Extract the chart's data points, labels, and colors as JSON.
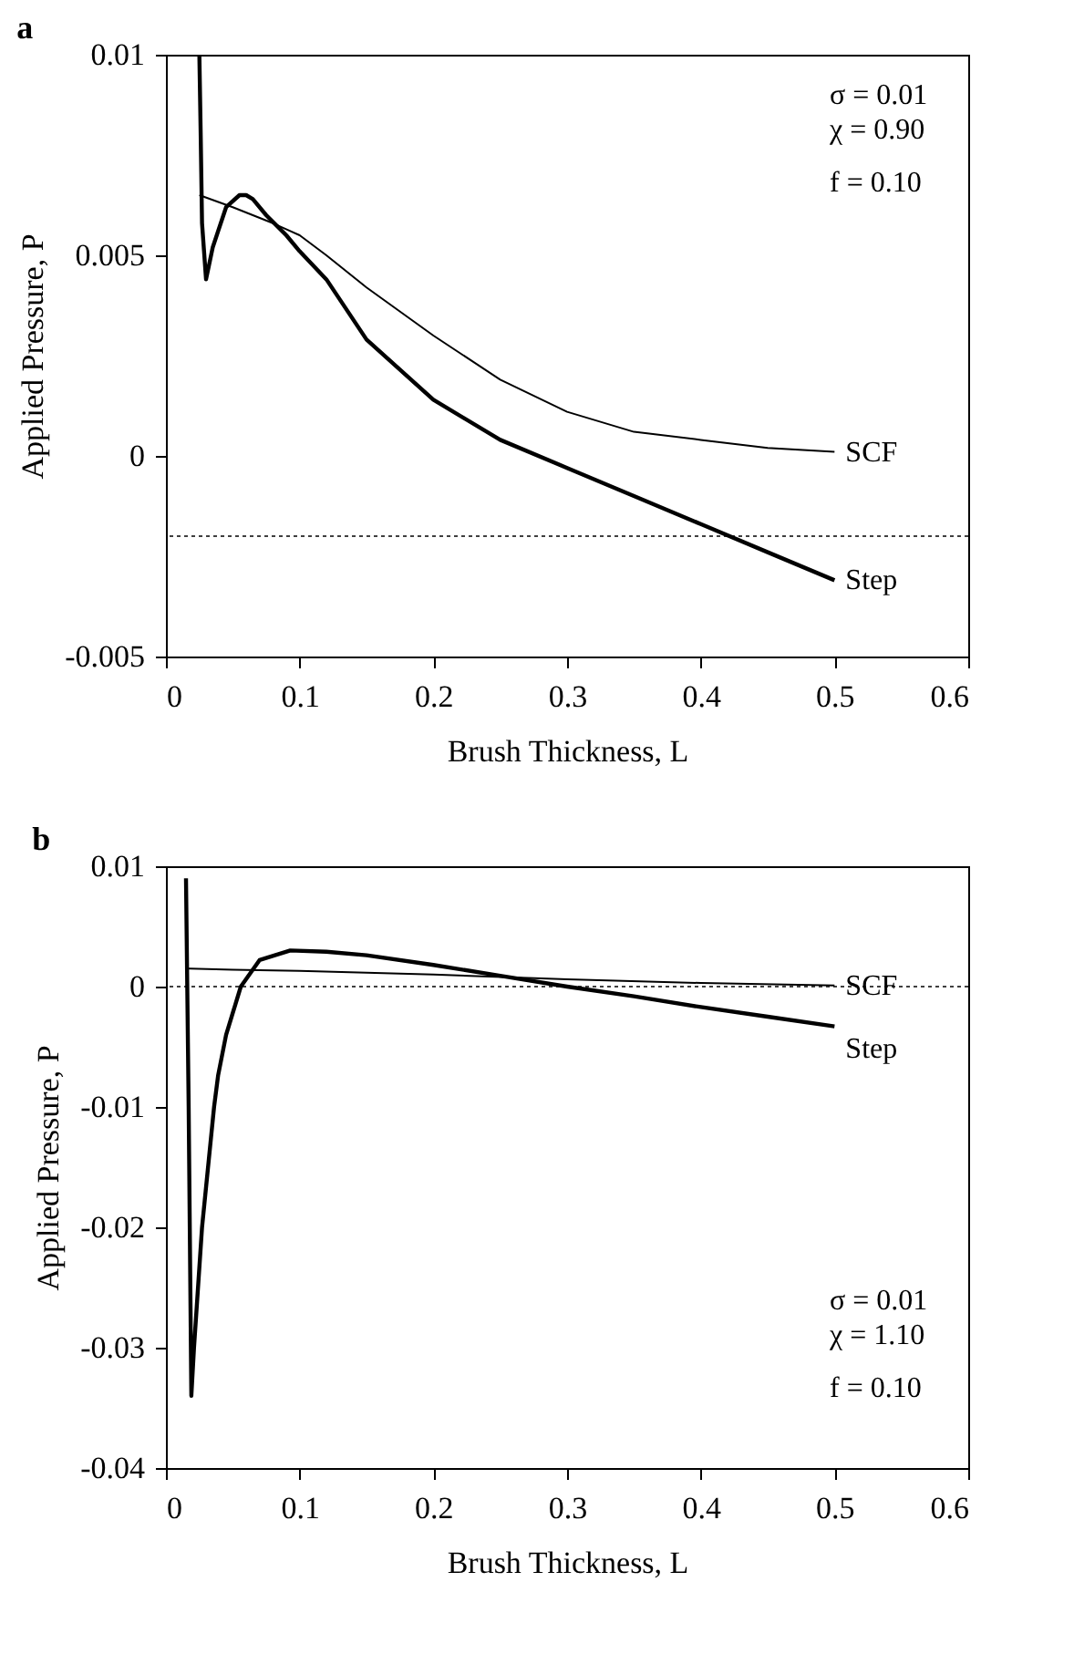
{
  "chart_data": [
    {
      "type": "line",
      "title": "a",
      "xlabel": "Brush Thickness, L",
      "ylabel": "Applied Pressure, P",
      "xlim": [
        0,
        0.6
      ],
      "xticks": [
        0,
        0.1,
        0.2,
        0.3,
        0.4,
        0.5,
        0.6
      ],
      "ylim": [
        -0.005,
        0.01
      ],
      "yticks": [
        -0.005,
        0,
        0.005,
        0.01
      ],
      "grid": false,
      "legend": false,
      "annotations": [
        "σ = 0.01",
        "χ = 0.90",
        "f = 0.10"
      ],
      "ref_lines": [
        {
          "axis": "y",
          "value": -0.002,
          "label": null,
          "color": "#000000",
          "line_style": "dotted"
        }
      ],
      "series": [
        {
          "name": "SCF",
          "color": "#000000",
          "x": [
            0.025,
            0.05,
            0.08,
            0.1,
            0.12,
            0.15,
            0.2,
            0.25,
            0.3,
            0.35,
            0.4,
            0.45,
            0.5
          ],
          "values": [
            0.0065,
            0.0062,
            0.0058,
            0.0055,
            0.005,
            0.0042,
            0.003,
            0.0019,
            0.0011,
            0.0006,
            0.0004,
            0.0002,
            0.0001
          ]
        },
        {
          "name": "Step",
          "color": "#000000",
          "x": [
            0.025,
            0.026,
            0.027,
            0.03,
            0.035,
            0.045,
            0.055,
            0.06,
            0.065,
            0.075,
            0.09,
            0.1,
            0.12,
            0.15,
            0.2,
            0.25,
            0.3,
            0.35,
            0.4,
            0.45,
            0.5
          ],
          "values": [
            0.01,
            0.008,
            0.0058,
            0.0044,
            0.0052,
            0.0062,
            0.0065,
            0.0065,
            0.0064,
            0.006,
            0.0055,
            0.0051,
            0.0044,
            0.0029,
            0.0014,
            0.0004,
            -0.0003,
            -0.001,
            -0.0017,
            -0.0024,
            -0.0031
          ]
        }
      ]
    },
    {
      "type": "line",
      "title": "b",
      "xlabel": "Brush Thickness, L",
      "ylabel": "Applied Pressure, P",
      "xlim": [
        0,
        0.6
      ],
      "xticks": [
        0,
        0.1,
        0.2,
        0.3,
        0.4,
        0.5,
        0.6
      ],
      "ylim": [
        -0.04,
        0.01
      ],
      "yticks": [
        -0.04,
        -0.03,
        -0.02,
        -0.01,
        0,
        0.01
      ],
      "grid": false,
      "legend": false,
      "annotations": [
        "σ = 0.01",
        "χ = 1.10",
        "f = 0.10"
      ],
      "ref_lines": [
        {
          "axis": "y",
          "value": 0,
          "label": null,
          "color": "#000000",
          "line_style": "dotted"
        }
      ],
      "series": [
        {
          "name": "SCF",
          "color": "#000000",
          "x": [
            0.016,
            0.018,
            0.05,
            0.1,
            0.2,
            0.3,
            0.4,
            0.5
          ],
          "values": [
            0.0015,
            0.0015,
            0.0014,
            0.0013,
            0.001,
            0.0006,
            0.0003,
            0.0001
          ]
        },
        {
          "name": "Step",
          "color": "#000000",
          "x": [
            0.015,
            0.017,
            0.019,
            0.021,
            0.027,
            0.036,
            0.039,
            0.045,
            0.056,
            0.07,
            0.093,
            0.12,
            0.15,
            0.2,
            0.25,
            0.3,
            0.35,
            0.4,
            0.45,
            0.5
          ],
          "values": [
            0.009,
            -0.01,
            -0.034,
            -0.03,
            -0.02,
            -0.01,
            -0.0074,
            -0.004,
            0,
            0.0022,
            0.003,
            0.0029,
            0.0026,
            0.0018,
            0.0009,
            0,
            -0.0008,
            -0.0017,
            -0.0025,
            -0.0033
          ]
        }
      ]
    }
  ]
}
